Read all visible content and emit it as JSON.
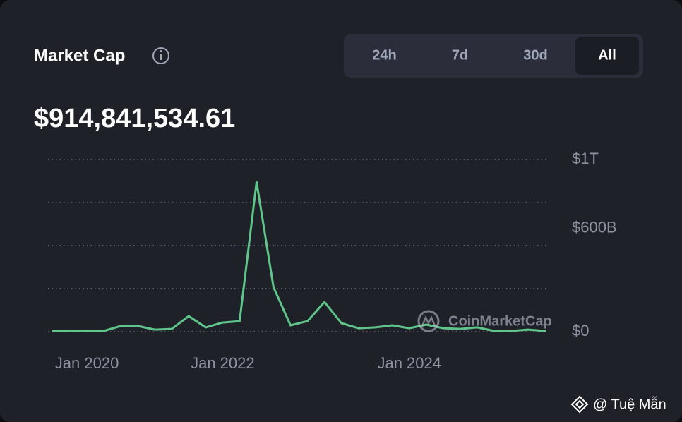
{
  "chart_data": {
    "type": "line",
    "title": "Market Cap",
    "subtitle": "$914,841,534.61",
    "tabs": [
      "24h",
      "7d",
      "30d",
      "All"
    ],
    "active_tab": "All",
    "categories": [
      null,
      null,
      "Jan 2020",
      null,
      null,
      null,
      null,
      null,
      null,
      null,
      "Jan 2022",
      null,
      null,
      null,
      null,
      null,
      null,
      null,
      null,
      null,
      null,
      "Jan 2024",
      null,
      null,
      null,
      null,
      null,
      null,
      null,
      null
    ],
    "series": [
      {
        "name": "Market Cap",
        "color": "#5fc58a",
        "values": [
          4,
          4,
          4,
          4,
          33,
          33,
          12,
          16,
          90,
          25,
          53,
          61,
          869,
          258,
          37,
          61,
          172,
          49,
          20,
          25,
          37,
          20,
          41,
          20,
          16,
          25,
          4,
          4,
          12,
          4
        ]
      }
    ],
    "ylim": [
      0,
      1000
    ],
    "yticks": [
      0,
      250,
      500,
      750,
      1000
    ],
    "ytick_labels": [
      {
        "value": 0,
        "label": "$0"
      },
      {
        "value": 600,
        "label": "$600B"
      },
      {
        "value": 1000,
        "label": "$1T"
      }
    ],
    "grid": true,
    "watermark": "CoinMarketCap",
    "credit": "@ Tuệ Mẫn"
  }
}
